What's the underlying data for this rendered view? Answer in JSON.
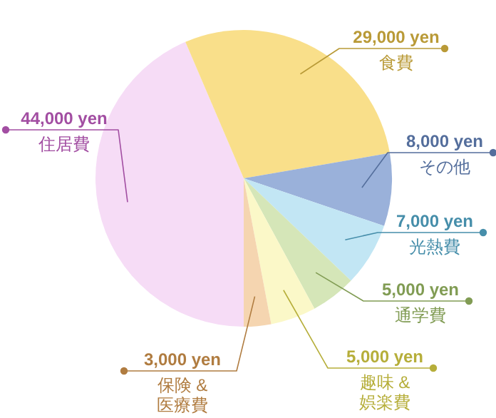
{
  "chart_data": {
    "type": "pie",
    "categories": [
      "住居費",
      "食費",
      "その他",
      "光熱費",
      "通学費",
      "趣味 &\n娯楽費",
      "保険 &\n医療費"
    ],
    "values": [
      44000,
      29000,
      8000,
      7000,
      5000,
      5000,
      3000
    ],
    "value_labels": [
      "44,000 yen",
      "29,000 yen",
      "8,000 yen",
      "7,000 yen",
      "5,000 yen",
      "5,000 yen",
      "3,000 yen"
    ],
    "colors": [
      "#f6dcf6",
      "#f9df8a",
      "#9ab1da",
      "#c2e6f4",
      "#d5e6b8",
      "#fbf8c8",
      "#f5d5b0"
    ]
  }
}
